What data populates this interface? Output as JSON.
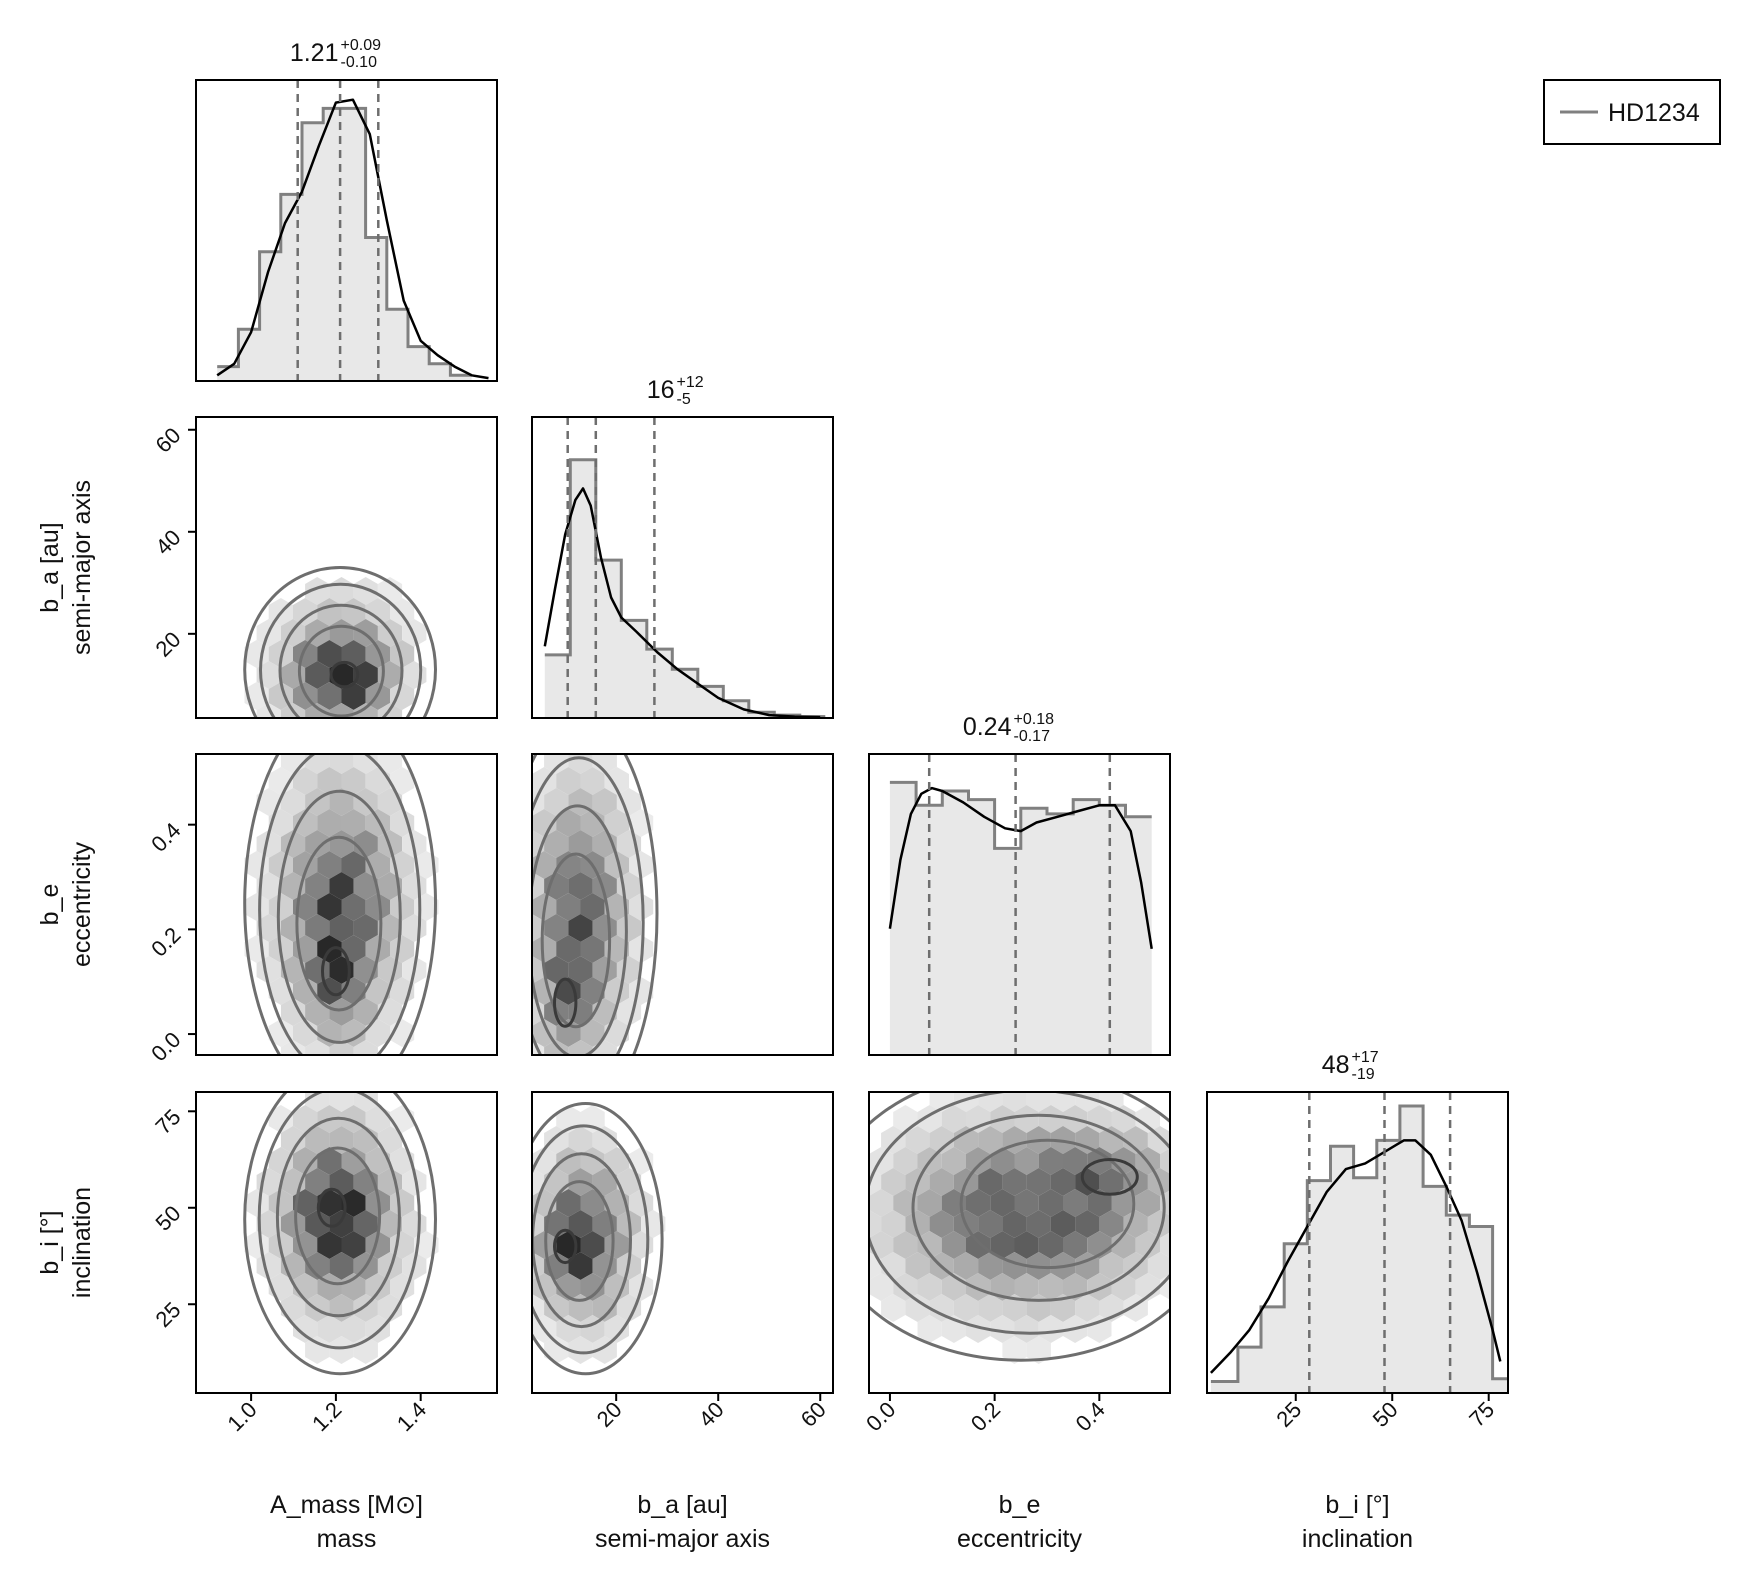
{
  "chart_data": {
    "type": "corner",
    "legend": {
      "entries": [
        "HD1234"
      ],
      "placement": "top-right",
      "line_color": "#808080"
    },
    "colors": {
      "hist_fill": "#e8e8e8",
      "hist_step": "#808080",
      "kde": "#000000",
      "quantile": "#6e6e6e",
      "contour": "#6e6e6e",
      "hexbin_dark": "#2a2a2a"
    },
    "parameters": [
      {
        "name": "A_mass [M⊙]",
        "description": "mass",
        "median": "1.21",
        "plus": "+0.09",
        "minus": "-0.10",
        "range": [
          0.87,
          1.58
        ],
        "ticks": [
          1.0,
          1.2,
          1.4
        ],
        "tick_labels": [
          "1.0",
          "1.2",
          "1.4"
        ],
        "quantiles": [
          1.11,
          1.21,
          1.3
        ],
        "hist_edges": [
          0.92,
          0.97,
          1.02,
          1.07,
          1.12,
          1.17,
          1.22,
          1.27,
          1.32,
          1.37,
          1.42,
          1.47,
          1.52
        ],
        "hist_counts": [
          0.05,
          0.18,
          0.45,
          0.65,
          0.9,
          0.95,
          0.95,
          0.5,
          0.25,
          0.12,
          0.06,
          0.02
        ],
        "kde_x": [
          0.92,
          0.96,
          1.0,
          1.04,
          1.08,
          1.12,
          1.16,
          1.2,
          1.24,
          1.28,
          1.32,
          1.36,
          1.4,
          1.44,
          1.48,
          1.52,
          1.56
        ],
        "kde_y": [
          0.02,
          0.06,
          0.17,
          0.38,
          0.55,
          0.66,
          0.82,
          0.97,
          0.98,
          0.86,
          0.56,
          0.28,
          0.14,
          0.09,
          0.05,
          0.02,
          0.01
        ]
      },
      {
        "name": "b_a [au]",
        "description": "semi-major axis",
        "median": "16",
        "plus": "+12",
        "minus": "-5",
        "range": [
          3.5,
          62.5
        ],
        "ticks": [
          20,
          40,
          60
        ],
        "tick_labels": [
          "20",
          "40",
          "60"
        ],
        "quantiles": [
          10.5,
          16,
          27.5
        ],
        "hist_edges": [
          6,
          11,
          16,
          21,
          26,
          31,
          36,
          41,
          46,
          51,
          56,
          61
        ],
        "hist_counts": [
          0.22,
          0.9,
          0.55,
          0.34,
          0.24,
          0.17,
          0.11,
          0.06,
          0.02,
          0.01,
          0.005
        ],
        "kde_x": [
          6,
          8,
          10,
          12,
          13.5,
          15,
          17,
          19,
          21,
          24,
          28,
          32,
          36,
          40,
          45,
          50,
          55,
          60
        ],
        "kde_y": [
          0.25,
          0.45,
          0.64,
          0.76,
          0.8,
          0.74,
          0.56,
          0.42,
          0.35,
          0.3,
          0.23,
          0.17,
          0.12,
          0.07,
          0.03,
          0.01,
          0.005,
          0.003
        ]
      },
      {
        "name": "b_e",
        "description": "eccentricity",
        "median": "0.24",
        "plus": "+0.18",
        "minus": "-0.17",
        "range": [
          -0.04,
          0.535
        ],
        "ticks": [
          0.0,
          0.2,
          0.4
        ],
        "tick_labels": [
          "0.0",
          "0.2",
          "0.4"
        ],
        "quantiles": [
          0.075,
          0.24,
          0.42
        ],
        "hist_edges": [
          0.0,
          0.05,
          0.1,
          0.15,
          0.2,
          0.25,
          0.3,
          0.35,
          0.4,
          0.45,
          0.5
        ],
        "hist_counts": [
          0.95,
          0.87,
          0.92,
          0.89,
          0.72,
          0.86,
          0.84,
          0.89,
          0.87,
          0.83
        ],
        "kde_x": [
          0.0,
          0.02,
          0.04,
          0.06,
          0.08,
          0.1,
          0.14,
          0.18,
          0.22,
          0.25,
          0.28,
          0.32,
          0.36,
          0.4,
          0.43,
          0.46,
          0.48,
          0.5
        ],
        "kde_y": [
          0.44,
          0.68,
          0.84,
          0.91,
          0.93,
          0.92,
          0.88,
          0.83,
          0.79,
          0.78,
          0.81,
          0.83,
          0.85,
          0.87,
          0.87,
          0.78,
          0.6,
          0.37
        ]
      },
      {
        "name": "b_i [°]",
        "description": "inclination",
        "median": "48",
        "plus": "+17",
        "minus": "-19",
        "range": [
          2,
          80
        ],
        "ticks": [
          25,
          50,
          75
        ],
        "tick_labels": [
          "25",
          "50",
          "75"
        ],
        "quantiles": [
          28.5,
          48,
          65
        ],
        "hist_edges": [
          3,
          10,
          16,
          22,
          28,
          34,
          40,
          46,
          52,
          58,
          64,
          70,
          76,
          80
        ],
        "hist_counts": [
          0.04,
          0.16,
          0.3,
          0.52,
          0.74,
          0.86,
          0.75,
          0.88,
          1.0,
          0.72,
          0.62,
          0.58,
          0.05
        ],
        "kde_x": [
          3,
          8,
          13,
          18,
          23,
          28,
          33,
          38,
          43,
          48,
          53,
          56,
          60,
          64,
          68,
          72,
          76,
          78
        ],
        "kde_y": [
          0.07,
          0.14,
          0.22,
          0.33,
          0.46,
          0.58,
          0.7,
          0.78,
          0.8,
          0.84,
          0.88,
          0.88,
          0.83,
          0.72,
          0.6,
          0.42,
          0.22,
          0.11
        ]
      }
    ],
    "pairs": [
      {
        "x": 0,
        "y": 1,
        "center": [
          1.21,
          13
        ],
        "spread": [
          0.09,
          8
        ],
        "density_peak": [
          1.22,
          12
        ]
      },
      {
        "x": 0,
        "y": 2,
        "center": [
          1.21,
          0.25
        ],
        "spread": [
          0.09,
          0.15
        ],
        "density_peak": [
          1.2,
          0.12
        ]
      },
      {
        "x": 1,
        "y": 2,
        "center": [
          13,
          0.23
        ],
        "spread": [
          6,
          0.15
        ],
        "density_peak": [
          10,
          0.06
        ]
      },
      {
        "x": 0,
        "y": 3,
        "center": [
          1.21,
          47
        ],
        "spread": [
          0.09,
          16
        ],
        "density_peak": [
          1.19,
          50
        ]
      },
      {
        "x": 1,
        "y": 3,
        "center": [
          14,
          42
        ],
        "spread": [
          6,
          14
        ],
        "density_peak": [
          10,
          40
        ]
      },
      {
        "x": 2,
        "y": 3,
        "center": [
          0.25,
          48
        ],
        "spread": [
          0.15,
          15
        ],
        "density_peak": [
          0.42,
          58
        ]
      }
    ]
  }
}
